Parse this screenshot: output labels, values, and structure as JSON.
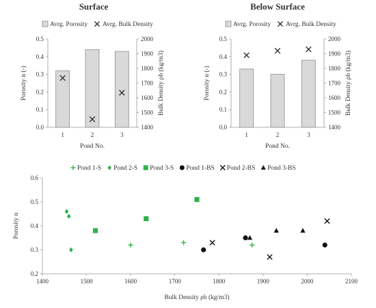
{
  "chart_data": [
    {
      "type": "bar",
      "title": "Surface",
      "categories": [
        "1",
        "2",
        "3"
      ],
      "xlabel": "Pond No.",
      "ylabel": "Porosity n (-)",
      "ylim": [
        0,
        0.5
      ],
      "yticks": [
        "0.0",
        "0.1",
        "0.2",
        "0.3",
        "0.4",
        "0.5"
      ],
      "y2label": "Bulk Density ρb (kg/m3)",
      "y2lim": [
        1400,
        2000
      ],
      "y2ticks": [
        "1400",
        "1500",
        "1600",
        "1700",
        "1800",
        "1900",
        "2000"
      ],
      "series": [
        {
          "name": "Avrg. Porosity",
          "kind": "bar",
          "axis": "left",
          "values": [
            0.32,
            0.44,
            0.43
          ]
        },
        {
          "name": "Avrg. Bulk Density",
          "kind": "marker",
          "marker": "x",
          "axis": "right",
          "values": [
            1735,
            1455,
            1635
          ]
        }
      ],
      "legend": "top",
      "colors": {
        "bar_fill": "#d9d9d9",
        "bar_stroke": "#8c8c8c",
        "marker": "#333333"
      }
    },
    {
      "type": "bar",
      "title": "Below Surface",
      "categories": [
        "1",
        "2",
        "3"
      ],
      "xlabel": "Pond No.",
      "ylabel": "Porosity n (-)",
      "ylim": [
        0,
        0.5
      ],
      "yticks": [
        "0.0",
        "0.1",
        "0.2",
        "0.3",
        "0.4",
        "0.5"
      ],
      "y2label": "Bulk Density ρb (kg/m3)",
      "y2lim": [
        1400,
        2000
      ],
      "y2ticks": [
        "1400",
        "1500",
        "1600",
        "1700",
        "1800",
        "1900",
        "2000"
      ],
      "series": [
        {
          "name": "Avrg. Porosity",
          "kind": "bar",
          "axis": "left",
          "values": [
            0.33,
            0.3,
            0.38
          ]
        },
        {
          "name": "Avrg. Bulk Density",
          "kind": "marker",
          "marker": "x",
          "axis": "right",
          "values": [
            1890,
            1920,
            1930
          ]
        }
      ],
      "legend": "top",
      "colors": {
        "bar_fill": "#d9d9d9",
        "bar_stroke": "#8c8c8c",
        "marker": "#333333"
      }
    },
    {
      "type": "scatter",
      "xlabel": "Bulk Density ρb (kg/m3)",
      "ylabel": "Porosity n",
      "xlim": [
        1400,
        2100
      ],
      "ylim": [
        0.2,
        0.6
      ],
      "xticks": [
        "1400",
        "1500",
        "1600",
        "1700",
        "1800",
        "1900",
        "2000",
        "2100"
      ],
      "yticks": [
        "0.2",
        "0.3",
        "0.4",
        "0.5",
        "0.6"
      ],
      "legend": "top",
      "series": [
        {
          "name": "Pond 1-S",
          "marker": "plus",
          "color": "#2db34a",
          "points": [
            [
              1600,
              0.32
            ],
            [
              1720,
              0.33
            ],
            [
              1875,
              0.32
            ]
          ]
        },
        {
          "name": "Pond 2-S",
          "marker": "diamond",
          "color": "#2db34a",
          "points": [
            [
              1455,
              0.46
            ],
            [
              1460,
              0.44
            ],
            [
              1465,
              0.3
            ]
          ]
        },
        {
          "name": "Pond 3-S",
          "marker": "square",
          "color": "#2db34a",
          "points": [
            [
              1520,
              0.38
            ],
            [
              1635,
              0.43
            ],
            [
              1750,
              0.51
            ]
          ]
        },
        {
          "name": "Pond 1-BS",
          "marker": "circle",
          "color": "#111111",
          "points": [
            [
              1765,
              0.3
            ],
            [
              1860,
              0.35
            ],
            [
              2040,
              0.32
            ]
          ]
        },
        {
          "name": "Pond 2-BS",
          "marker": "x",
          "color": "#111111",
          "points": [
            [
              1785,
              0.33
            ],
            [
              1915,
              0.27
            ],
            [
              2045,
              0.42
            ]
          ]
        },
        {
          "name": "Pond 3-BS",
          "marker": "triangle",
          "color": "#111111",
          "points": [
            [
              1870,
              0.35
            ],
            [
              1930,
              0.38
            ],
            [
              1990,
              0.38
            ]
          ]
        }
      ]
    }
  ]
}
